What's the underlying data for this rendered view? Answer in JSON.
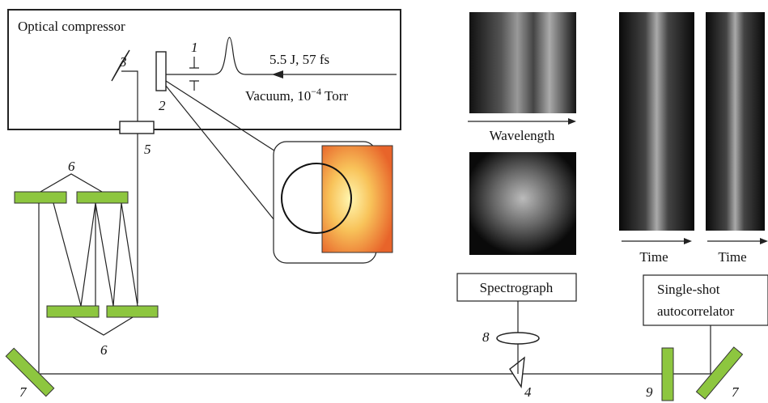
{
  "compressor_title": "Optical compressor",
  "pulse": "5.5 J, 57 fs",
  "vacuum": {
    "text": "Vacuum, 10",
    "exponent": "−4",
    "unit": "Torr"
  },
  "labels": {
    "aperture": "1",
    "target": "2",
    "mirror_3": "3",
    "window": "5",
    "gratings_top": "6",
    "gratings_bottom": "6",
    "mirror_left": "7",
    "mirror_right": "7",
    "lens": "8",
    "wedge": "4",
    "plate": "9"
  },
  "wavelength_axis": "Wavelength",
  "time_axis_1": "Time",
  "time_axis_2": "Time",
  "spectrograph": "Spectrograph",
  "autocorrelator": [
    "Single-shot",
    "autocorrelator"
  ]
}
